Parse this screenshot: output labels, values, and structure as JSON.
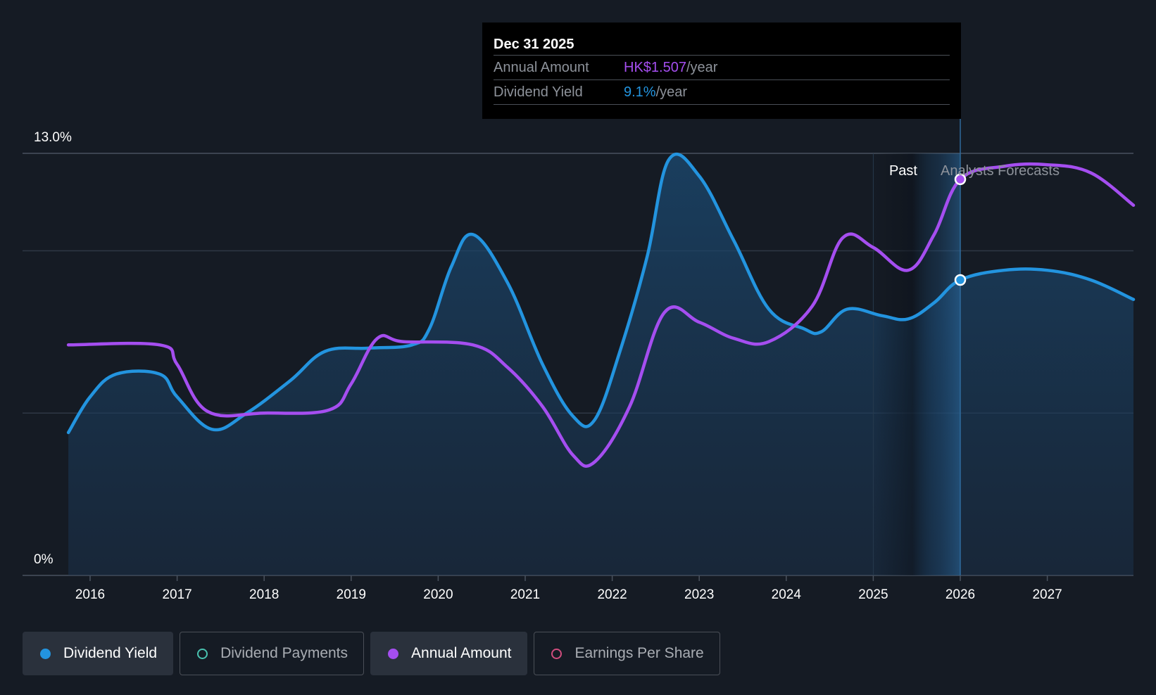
{
  "chart_data": {
    "type": "line",
    "y_top_label": "13.0%",
    "y_bottom_label": "0%",
    "ylim_percent": [
      0,
      13.0
    ],
    "x_ticks": [
      "2016",
      "2017",
      "2018",
      "2019",
      "2020",
      "2021",
      "2022",
      "2023",
      "2024",
      "2025",
      "2026",
      "2027"
    ],
    "x_range": [
      2015.75,
      2027.99
    ],
    "grid": true,
    "series": [
      {
        "name": "Dividend Yield",
        "color": "#2394df",
        "unit": "%",
        "area_fill": true,
        "points": [
          [
            2015.75,
            4.4
          ],
          [
            2016.0,
            5.5
          ],
          [
            2016.3,
            6.2
          ],
          [
            2016.8,
            6.2
          ],
          [
            2017.0,
            5.5
          ],
          [
            2017.4,
            4.5
          ],
          [
            2017.8,
            5.0
          ],
          [
            2018.3,
            6.0
          ],
          [
            2018.7,
            6.9
          ],
          [
            2019.2,
            7.0
          ],
          [
            2019.7,
            7.1
          ],
          [
            2019.9,
            7.6
          ],
          [
            2020.15,
            9.5
          ],
          [
            2020.4,
            10.5
          ],
          [
            2020.8,
            9.0
          ],
          [
            2021.2,
            6.5
          ],
          [
            2021.55,
            4.9
          ],
          [
            2021.8,
            4.8
          ],
          [
            2022.1,
            7.0
          ],
          [
            2022.4,
            9.8
          ],
          [
            2022.65,
            12.8
          ],
          [
            2023.0,
            12.3
          ],
          [
            2023.4,
            10.3
          ],
          [
            2023.8,
            8.2
          ],
          [
            2024.2,
            7.6
          ],
          [
            2024.4,
            7.5
          ],
          [
            2024.7,
            8.2
          ],
          [
            2025.1,
            8.0
          ],
          [
            2025.4,
            7.9
          ],
          [
            2025.7,
            8.4
          ],
          [
            2026.0,
            9.1
          ],
          [
            2026.5,
            9.4
          ],
          [
            2027.0,
            9.4
          ],
          [
            2027.5,
            9.1
          ],
          [
            2027.99,
            8.5
          ]
        ]
      },
      {
        "name": "Annual Amount",
        "color": "#a54ef0",
        "unit": "HK$",
        "points": [
          [
            2015.75,
            7.1
          ],
          [
            2016.8,
            7.1
          ],
          [
            2017.0,
            6.5
          ],
          [
            2017.35,
            5.05
          ],
          [
            2018.0,
            5.0
          ],
          [
            2018.75,
            5.1
          ],
          [
            2019.0,
            5.9
          ],
          [
            2019.3,
            7.3
          ],
          [
            2019.6,
            7.2
          ],
          [
            2020.4,
            7.1
          ],
          [
            2020.8,
            6.4
          ],
          [
            2021.2,
            5.2
          ],
          [
            2021.55,
            3.7
          ],
          [
            2021.8,
            3.5
          ],
          [
            2022.2,
            5.2
          ],
          [
            2022.6,
            8.1
          ],
          [
            2023.0,
            7.8
          ],
          [
            2023.4,
            7.3
          ],
          [
            2023.8,
            7.2
          ],
          [
            2024.3,
            8.3
          ],
          [
            2024.65,
            10.4
          ],
          [
            2025.0,
            10.1
          ],
          [
            2025.4,
            9.4
          ],
          [
            2025.7,
            10.5
          ],
          [
            2026.0,
            12.2
          ],
          [
            2026.5,
            12.6
          ],
          [
            2027.0,
            12.65
          ],
          [
            2027.5,
            12.4
          ],
          [
            2027.99,
            11.4
          ]
        ]
      }
    ],
    "regions": {
      "past_label": "Past",
      "forecast_label": "Analysts Forecasts",
      "divider_x": 2026.0,
      "shade_from_x": 2025.0
    },
    "markers": [
      {
        "series": "Dividend Yield",
        "x": 2026.0,
        "y": 9.1
      },
      {
        "series": "Annual Amount",
        "x": 2026.0,
        "y": 12.2
      }
    ]
  },
  "tooltip": {
    "date": "Dec 31 2025",
    "rows": [
      {
        "label": "Annual Amount",
        "value": "HK$1.507",
        "unit": "/year",
        "color": "#a54ef0"
      },
      {
        "label": "Dividend Yield",
        "value": "9.1%",
        "unit": "/year",
        "color": "#2394df"
      }
    ]
  },
  "legend": [
    {
      "label": "Dividend Yield",
      "color": "#2394df",
      "filled": true,
      "active": true
    },
    {
      "label": "Dividend Payments",
      "color": "#49c2b0",
      "filled": false,
      "active": false
    },
    {
      "label": "Annual Amount",
      "color": "#a54ef0",
      "filled": true,
      "active": true
    },
    {
      "label": "Earnings Per Share",
      "color": "#d14d7e",
      "filled": false,
      "active": false
    }
  ]
}
